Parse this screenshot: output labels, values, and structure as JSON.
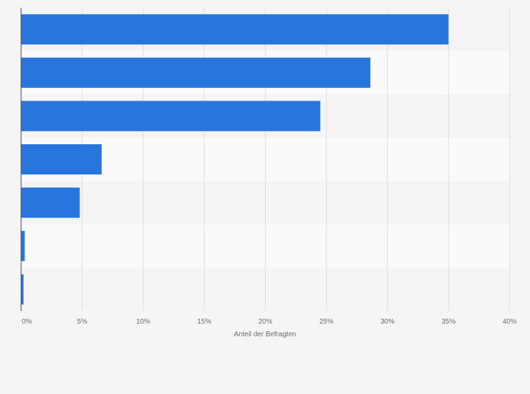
{
  "chart_data": {
    "type": "bar",
    "orientation": "horizontal",
    "title": "",
    "xlabel": "Anteil der Befragten",
    "ylabel": "",
    "categories": [
      "",
      "",
      "",
      "",
      "",
      "",
      ""
    ],
    "values": [
      35.0,
      28.6,
      24.5,
      6.6,
      4.8,
      0.3,
      0.2
    ],
    "unit": "%",
    "xlim": [
      0,
      40
    ],
    "xticks": [
      0,
      5,
      10,
      15,
      20,
      25,
      30,
      35,
      40
    ],
    "xtick_labels": [
      "0%",
      "5%",
      "10%",
      "15%",
      "20%",
      "25%",
      "30%",
      "35%",
      "40%"
    ],
    "grid": true,
    "bar_color": "#2876dd",
    "band_colors": [
      "#f4f4f4",
      "#fafafa"
    ],
    "grid_color": "#dedede",
    "axis_color": "#444444",
    "page_bg": "#f5f5f5"
  }
}
